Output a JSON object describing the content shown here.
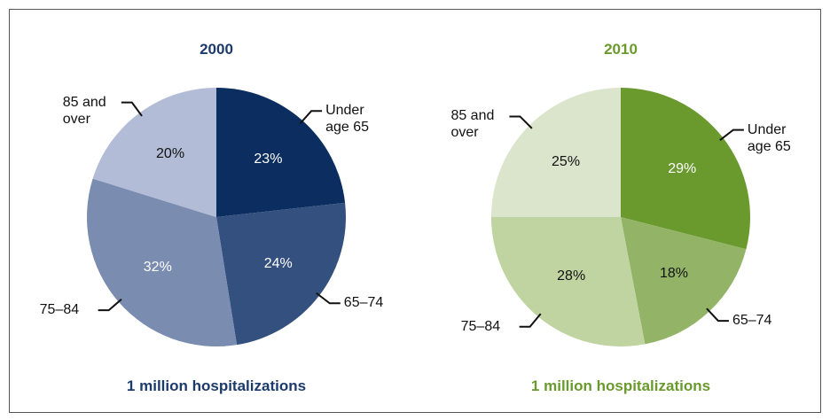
{
  "chart_data": [
    {
      "type": "pie",
      "title": "2000",
      "color": "#1c3a6b",
      "categories": [
        "Under age 65",
        "65–74",
        "75–84",
        "85 and over"
      ],
      "values": [
        23,
        24,
        32,
        20
      ],
      "value_labels": [
        "23%",
        "24%",
        "32%",
        "20%"
      ],
      "colors": [
        "#0b2d5f",
        "#34507f",
        "#7a8cb0",
        "#b2bcd6"
      ],
      "footnote": "1 million hospitalizations"
    },
    {
      "type": "pie",
      "title": "2010",
      "color": "#6a9a2e",
      "categories": [
        "Under age 65",
        "65–74",
        "75–84",
        "85 and over"
      ],
      "values": [
        29,
        18,
        28,
        25
      ],
      "value_labels": [
        "29%",
        "18%",
        "28%",
        "25%"
      ],
      "colors": [
        "#6a9a2e",
        "#93b467",
        "#bfd4a0",
        "#dbe5cc"
      ],
      "footnote": "1 million hospitalizations"
    }
  ]
}
